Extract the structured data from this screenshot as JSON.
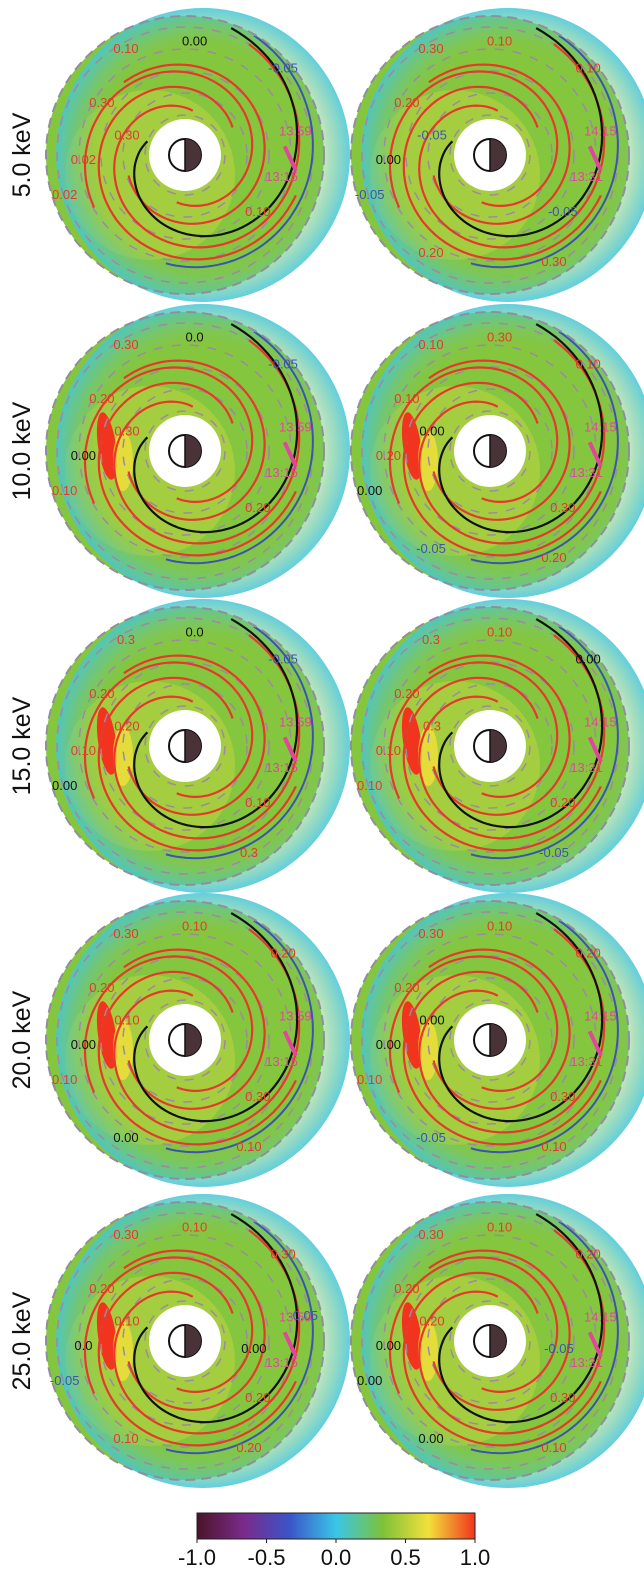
{
  "rows": [
    {
      "energy_label": "5.0 keV",
      "panels": [
        {
          "contour_labels": [
            {
              "text": "0.10",
              "color": "#e53a2a"
            },
            {
              "text": "0.30",
              "color": "#e53a2a"
            },
            {
              "text": "0.00",
              "color": "#111111"
            },
            {
              "text": "0.02",
              "color": "#e53a2a"
            },
            {
              "text": "0.02",
              "color": "#e53a2a"
            },
            {
              "text": "0.30",
              "color": "#e53a2a"
            },
            {
              "text": "0.10",
              "color": "#e53a2a"
            },
            {
              "text": "-0.05",
              "color": "#3a55b0"
            }
          ],
          "times": [
            "13:59",
            "13:15"
          ]
        },
        {
          "contour_labels": [
            {
              "text": "0.30",
              "color": "#e53a2a"
            },
            {
              "text": "0.20",
              "color": "#e53a2a"
            },
            {
              "text": "0.10",
              "color": "#e53a2a"
            },
            {
              "text": "0.00",
              "color": "#111111"
            },
            {
              "text": "-0.05",
              "color": "#3a55b0"
            },
            {
              "text": "-0.05",
              "color": "#3a55b0"
            },
            {
              "text": "-0.05",
              "color": "#3a55b0"
            },
            {
              "text": "0.10",
              "color": "#e53a2a"
            },
            {
              "text": "0.30",
              "color": "#e53a2a"
            },
            {
              "text": "0.20",
              "color": "#e53a2a"
            }
          ],
          "times": [
            "14:15",
            "13:31"
          ]
        }
      ]
    },
    {
      "energy_label": "10.0 keV",
      "panels": [
        {
          "contour_labels": [
            {
              "text": "0.30",
              "color": "#e53a2a"
            },
            {
              "text": "0.20",
              "color": "#e53a2a"
            },
            {
              "text": "0.0",
              "color": "#111111"
            },
            {
              "text": "0.00",
              "color": "#111111"
            },
            {
              "text": "0.10",
              "color": "#e53a2a"
            },
            {
              "text": "0.30",
              "color": "#e53a2a"
            },
            {
              "text": "0.20",
              "color": "#e53a2a"
            },
            {
              "text": "-0.05",
              "color": "#3a55b0"
            }
          ],
          "times": [
            "13:59",
            "13:15"
          ]
        },
        {
          "contour_labels": [
            {
              "text": "0.10",
              "color": "#e53a2a"
            },
            {
              "text": "0.10",
              "color": "#e53a2a"
            },
            {
              "text": "0.30",
              "color": "#e53a2a"
            },
            {
              "text": "0.20",
              "color": "#e53a2a"
            },
            {
              "text": "0.00",
              "color": "#111111"
            },
            {
              "text": "0.00",
              "color": "#111111"
            },
            {
              "text": "0.30",
              "color": "#e53a2a"
            },
            {
              "text": "0.10",
              "color": "#e53a2a"
            },
            {
              "text": "0.20",
              "color": "#e53a2a"
            },
            {
              "text": "-0.05",
              "color": "#3a55b0"
            }
          ],
          "times": [
            "14:15",
            "13:31"
          ]
        }
      ]
    },
    {
      "energy_label": "15.0 keV",
      "panels": [
        {
          "contour_labels": [
            {
              "text": "0.3",
              "color": "#e53a2a"
            },
            {
              "text": "0.20",
              "color": "#e53a2a"
            },
            {
              "text": "0.0",
              "color": "#111111"
            },
            {
              "text": "0.10",
              "color": "#e53a2a"
            },
            {
              "text": "0.00",
              "color": "#111111"
            },
            {
              "text": "0.20",
              "color": "#e53a2a"
            },
            {
              "text": "0.10",
              "color": "#e53a2a"
            },
            {
              "text": "-0.05",
              "color": "#3a55b0"
            },
            {
              "text": "0.3",
              "color": "#e53a2a"
            }
          ],
          "times": [
            "13:59",
            "13:15"
          ]
        },
        {
          "contour_labels": [
            {
              "text": "0.3",
              "color": "#e53a2a"
            },
            {
              "text": "0.20",
              "color": "#e53a2a"
            },
            {
              "text": "0.10",
              "color": "#e53a2a"
            },
            {
              "text": "0.10",
              "color": "#e53a2a"
            },
            {
              "text": "0.10",
              "color": "#e53a2a"
            },
            {
              "text": "0.3",
              "color": "#e53a2a"
            },
            {
              "text": "0.20",
              "color": "#e53a2a"
            },
            {
              "text": "0.00",
              "color": "#111111"
            },
            {
              "text": "-0.05",
              "color": "#3a55b0"
            }
          ],
          "times": [
            "14:15",
            "13:31"
          ]
        }
      ]
    },
    {
      "energy_label": "20.0 keV",
      "panels": [
        {
          "contour_labels": [
            {
              "text": "0.30",
              "color": "#e53a2a"
            },
            {
              "text": "0.20",
              "color": "#e53a2a"
            },
            {
              "text": "0.10",
              "color": "#e53a2a"
            },
            {
              "text": "0.00",
              "color": "#111111"
            },
            {
              "text": "0.10",
              "color": "#e53a2a"
            },
            {
              "text": "0.10",
              "color": "#e53a2a"
            },
            {
              "text": "0.30",
              "color": "#e53a2a"
            },
            {
              "text": "0.20",
              "color": "#e53a2a"
            },
            {
              "text": "0.10",
              "color": "#e53a2a"
            },
            {
              "text": "0.00",
              "color": "#111111"
            }
          ],
          "times": [
            "13:59",
            "13:15"
          ]
        },
        {
          "contour_labels": [
            {
              "text": "0.30",
              "color": "#e53a2a"
            },
            {
              "text": "0.20",
              "color": "#e53a2a"
            },
            {
              "text": "0.10",
              "color": "#e53a2a"
            },
            {
              "text": "0.00",
              "color": "#111111"
            },
            {
              "text": "0.10",
              "color": "#e53a2a"
            },
            {
              "text": "0.00",
              "color": "#111111"
            },
            {
              "text": "0.30",
              "color": "#e53a2a"
            },
            {
              "text": "0.20",
              "color": "#e53a2a"
            },
            {
              "text": "0.10",
              "color": "#e53a2a"
            },
            {
              "text": "-0.05",
              "color": "#3a55b0"
            }
          ],
          "times": [
            "14:15",
            "13:31"
          ]
        }
      ]
    },
    {
      "energy_label": "25.0 keV",
      "panels": [
        {
          "contour_labels": [
            {
              "text": "0.30",
              "color": "#e53a2a"
            },
            {
              "text": "0.20",
              "color": "#e53a2a"
            },
            {
              "text": "0.10",
              "color": "#e53a2a"
            },
            {
              "text": "0.0",
              "color": "#111111"
            },
            {
              "text": "-0.05",
              "color": "#3a55b0"
            },
            {
              "text": "0.10",
              "color": "#e53a2a"
            },
            {
              "text": "0.20",
              "color": "#e53a2a"
            },
            {
              "text": "0.30",
              "color": "#e53a2a"
            },
            {
              "text": "0.20",
              "color": "#e53a2a"
            },
            {
              "text": "0.10",
              "color": "#e53a2a"
            },
            {
              "text": "0.00",
              "color": "#111111"
            },
            {
              "text": "-0.05",
              "color": "#3a55b0"
            }
          ],
          "times": [
            "13:59",
            "13:15"
          ]
        },
        {
          "contour_labels": [
            {
              "text": "0.30",
              "color": "#e53a2a"
            },
            {
              "text": "0.20",
              "color": "#e53a2a"
            },
            {
              "text": "0.10",
              "color": "#e53a2a"
            },
            {
              "text": "0.00",
              "color": "#111111"
            },
            {
              "text": "0.00",
              "color": "#111111"
            },
            {
              "text": "0.20",
              "color": "#e53a2a"
            },
            {
              "text": "0.30",
              "color": "#e53a2a"
            },
            {
              "text": "0.20",
              "color": "#e53a2a"
            },
            {
              "text": "0.10",
              "color": "#e53a2a"
            },
            {
              "text": "0.00",
              "color": "#111111"
            },
            {
              "text": "-0.05",
              "color": "#3a55b0"
            }
          ],
          "times": [
            "14:15",
            "13:31"
          ]
        }
      ]
    }
  ],
  "colorbar": {
    "ticks": [
      "-1.0",
      "-0.5",
      "0.0",
      "0.5",
      "1.0"
    ],
    "colors": [
      "#4a1428",
      "#7a2a8a",
      "#3a55c8",
      "#39c6e8",
      "#7dc23a",
      "#f3e03a",
      "#f2341e"
    ]
  },
  "colors": {
    "background_green": "#85c63f",
    "contour_red": "#e53a2a",
    "contour_black": "#111111",
    "contour_blue": "#3a55b0",
    "time_magenta": "#e0479a",
    "dashed_gray": "#9c8aa0",
    "earth_dark": "#4a3338"
  }
}
